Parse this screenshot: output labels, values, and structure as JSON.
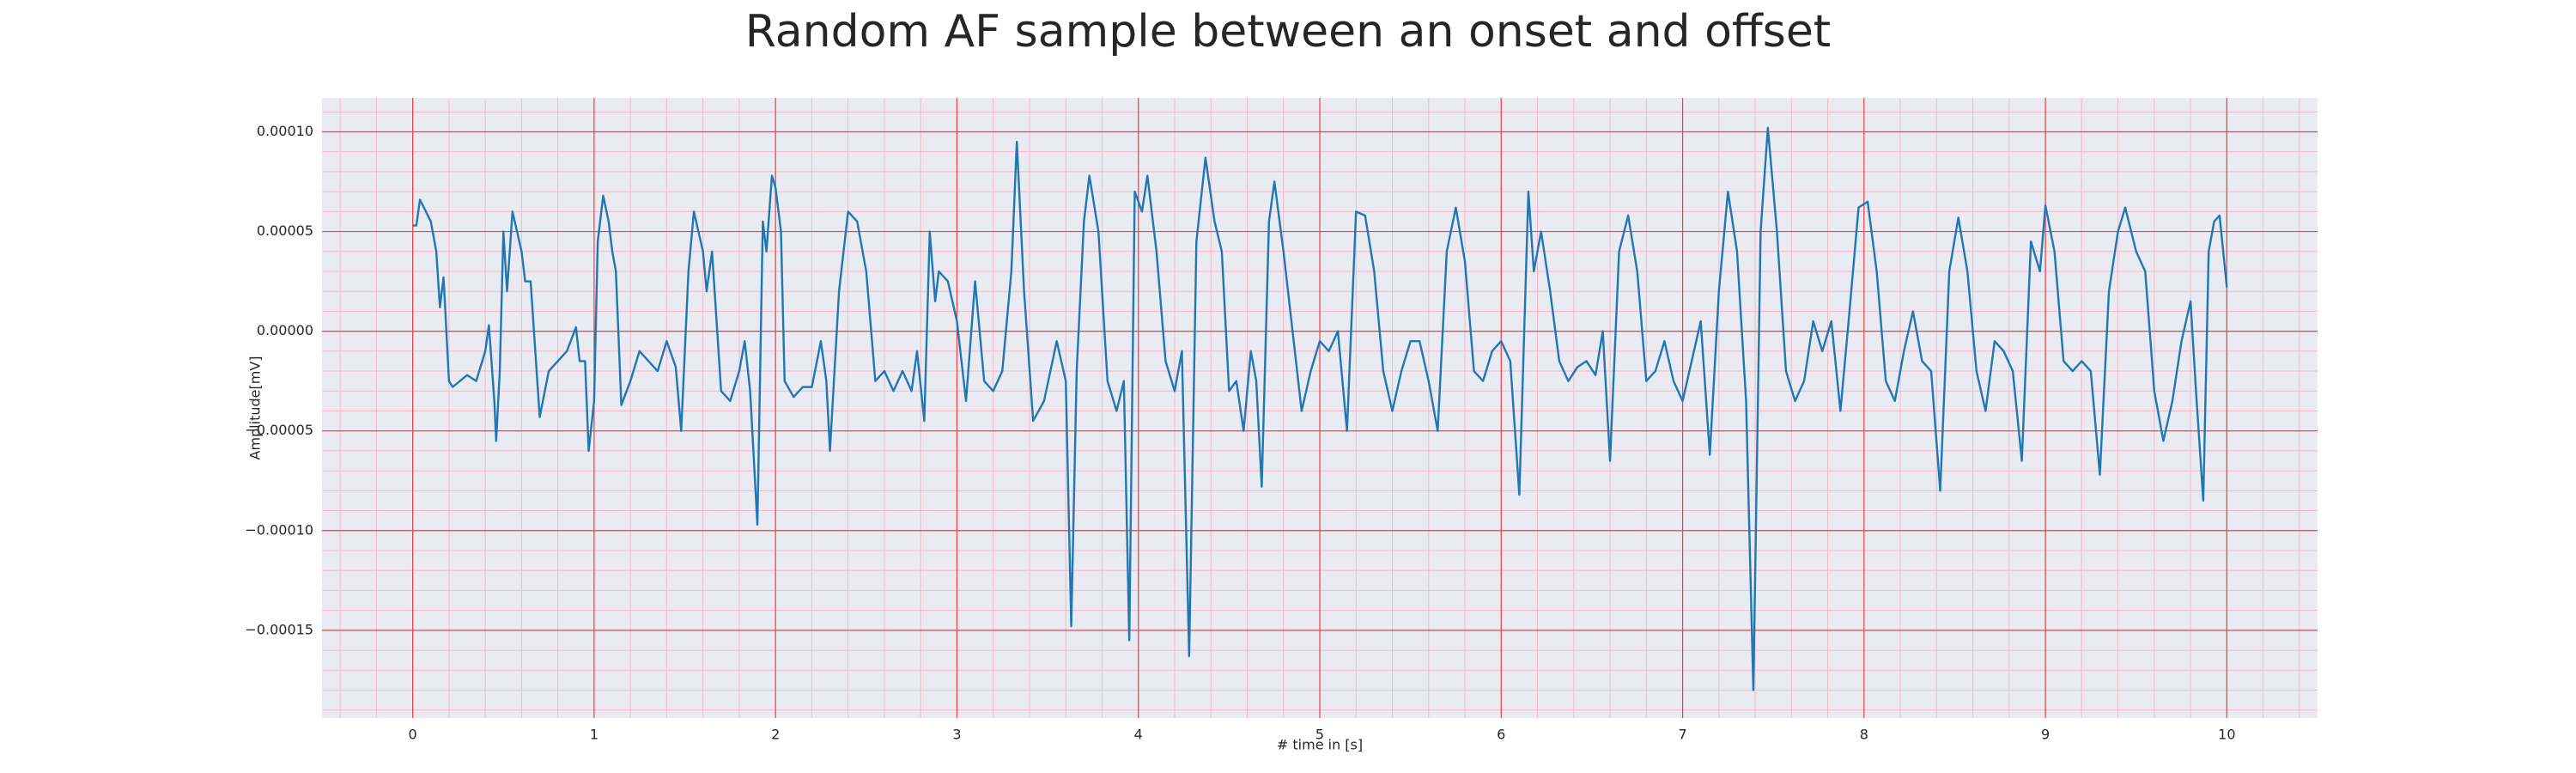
{
  "chart_data": {
    "type": "line",
    "title": "Random AF sample between an onset and offset",
    "xlabel": "# time in [s]",
    "ylabel": "Amplitude[mV]",
    "color": "#1f77b4",
    "grid": true,
    "minor_grid": true,
    "xlim": [
      -0.5,
      10.5
    ],
    "ylim": [
      -0.000194,
      0.000117
    ],
    "xticks": [
      0,
      1,
      2,
      3,
      4,
      5,
      6,
      7,
      8,
      9,
      10
    ],
    "yticks": [
      {
        "value": -0.00015,
        "label": "−0.00015"
      },
      {
        "value": -0.0001,
        "label": "−0.00010"
      },
      {
        "value": -5e-05,
        "label": "−0.00005"
      },
      {
        "value": 0,
        "label": "0.00000"
      },
      {
        "value": 5e-05,
        "label": "0.00005"
      },
      {
        "value": 0.0001,
        "label": "0.00010"
      }
    ],
    "x": [
      0,
      0.02,
      0.04,
      0.1,
      0.13,
      0.15,
      0.17,
      0.2,
      0.22,
      0.3,
      0.35,
      0.4,
      0.42,
      0.45,
      0.46,
      0.48,
      0.5,
      0.52,
      0.55,
      0.6,
      0.62,
      0.65,
      0.7,
      0.75,
      0.8,
      0.85,
      0.9,
      0.92,
      0.95,
      0.97,
      1.0,
      1.02,
      1.05,
      1.08,
      1.1,
      1.12,
      1.15,
      1.2,
      1.25,
      1.3,
      1.35,
      1.4,
      1.45,
      1.48,
      1.52,
      1.55,
      1.6,
      1.62,
      1.65,
      1.7,
      1.75,
      1.8,
      1.83,
      1.86,
      1.9,
      1.93,
      1.95,
      1.98,
      2.0,
      2.03,
      2.05,
      2.1,
      2.15,
      2.2,
      2.25,
      2.28,
      2.3,
      2.35,
      2.4,
      2.45,
      2.5,
      2.55,
      2.6,
      2.65,
      2.7,
      2.75,
      2.78,
      2.82,
      2.85,
      2.88,
      2.9,
      2.95,
      3.0,
      3.05,
      3.1,
      3.15,
      3.2,
      3.25,
      3.3,
      3.33,
      3.37,
      3.42,
      3.48,
      3.55,
      3.6,
      3.63,
      3.66,
      3.7,
      3.73,
      3.78,
      3.83,
      3.88,
      3.92,
      3.95,
      3.98,
      4.02,
      4.05,
      4.1,
      4.15,
      4.2,
      4.24,
      4.28,
      4.32,
      4.37,
      4.42,
      4.46,
      4.5,
      4.54,
      4.58,
      4.62,
      4.65,
      4.68,
      4.72,
      4.75,
      4.8,
      4.85,
      4.9,
      4.95,
      5.0,
      5.05,
      5.1,
      5.15,
      5.2,
      5.25,
      5.3,
      5.35,
      5.4,
      5.45,
      5.5,
      5.55,
      5.6,
      5.65,
      5.7,
      5.75,
      5.8,
      5.85,
      5.9,
      5.95,
      6.0,
      6.05,
      6.1,
      6.15,
      6.18,
      6.22,
      6.27,
      6.32,
      6.37,
      6.42,
      6.47,
      6.52,
      6.56,
      6.6,
      6.65,
      6.7,
      6.75,
      6.8,
      6.85,
      6.9,
      6.95,
      7.0,
      7.05,
      7.1,
      7.15,
      7.2,
      7.25,
      7.3,
      7.35,
      7.39,
      7.43,
      7.47,
      7.52,
      7.57,
      7.62,
      7.67,
      7.72,
      7.77,
      7.82,
      7.87,
      7.92,
      7.97,
      8.02,
      8.07,
      8.12,
      8.17,
      8.22,
      8.27,
      8.32,
      8.37,
      8.42,
      8.47,
      8.52,
      8.57,
      8.62,
      8.67,
      8.72,
      8.77,
      8.82,
      8.87,
      8.92,
      8.97,
      9.0,
      9.05,
      9.1,
      9.15,
      9.2,
      9.25,
      9.3,
      9.35,
      9.4,
      9.44,
      9.5,
      9.55,
      9.6,
      9.65,
      9.7,
      9.75,
      9.8,
      9.83,
      9.87,
      9.9,
      9.93,
      9.96,
      10.0
    ],
    "values": [
      5.3e-05,
      5.3e-05,
      6.6e-05,
      5.5e-05,
      4e-05,
      1.2e-05,
      2.7e-05,
      -2.5e-05,
      -2.8e-05,
      -2.2e-05,
      -2.5e-05,
      -1e-05,
      3e-06,
      -3.5e-05,
      -5.5e-05,
      -2e-05,
      5e-05,
      2e-05,
      6e-05,
      4e-05,
      2.5e-05,
      2.5e-05,
      -4.3e-05,
      -2e-05,
      -1.5e-05,
      -1e-05,
      2e-06,
      -1.5e-05,
      -1.5e-05,
      -6e-05,
      -3.5e-05,
      4.5e-05,
      6.8e-05,
      5.5e-05,
      4e-05,
      3e-05,
      -3.7e-05,
      -2.5e-05,
      -1e-05,
      -1.5e-05,
      -2e-05,
      -5e-06,
      -1.8e-05,
      -5e-05,
      3e-05,
      6e-05,
      4e-05,
      2e-05,
      4e-05,
      -3e-05,
      -3.5e-05,
      -2e-05,
      -5e-06,
      -3e-05,
      -9.7e-05,
      5.5e-05,
      4e-05,
      7.8e-05,
      7.2e-05,
      5e-05,
      -2.5e-05,
      -3.3e-05,
      -2.8e-05,
      -2.8e-05,
      -5e-06,
      -2.5e-05,
      -6e-05,
      2e-05,
      6e-05,
      5.5e-05,
      3e-05,
      -2.5e-05,
      -2e-05,
      -3e-05,
      -2e-05,
      -3e-05,
      -1e-05,
      -4.5e-05,
      5e-05,
      1.5e-05,
      3e-05,
      2.5e-05,
      5e-06,
      -3.5e-05,
      2.5e-05,
      -2.5e-05,
      -3e-05,
      -2e-05,
      3e-05,
      9.5e-05,
      2e-05,
      -4.5e-05,
      -3.5e-05,
      -5e-06,
      -2.5e-05,
      -0.000148,
      -2e-05,
      5.5e-05,
      7.8e-05,
      5e-05,
      -2.5e-05,
      -4e-05,
      -2.5e-05,
      -0.000155,
      7e-05,
      6e-05,
      7.8e-05,
      4e-05,
      -1.5e-05,
      -3e-05,
      -1e-05,
      -0.000163,
      4.5e-05,
      8.7e-05,
      5.5e-05,
      4e-05,
      -3e-05,
      -2.5e-05,
      -5e-05,
      -1e-05,
      -2.5e-05,
      -7.8e-05,
      5.5e-05,
      7.5e-05,
      4e-05,
      0,
      -4e-05,
      -2e-05,
      -5e-06,
      -1e-05,
      0,
      -5e-05,
      6e-05,
      5.8e-05,
      3e-05,
      -2e-05,
      -4e-05,
      -2e-05,
      -5e-06,
      -5e-06,
      -2.5e-05,
      -5e-05,
      4e-05,
      6.2e-05,
      3.5e-05,
      -2e-05,
      -2.5e-05,
      -1e-05,
      -5e-06,
      -1.5e-05,
      -8.2e-05,
      7e-05,
      3e-05,
      5e-05,
      2e-05,
      -1.5e-05,
      -2.5e-05,
      -1.8e-05,
      -1.5e-05,
      -2.2e-05,
      0,
      -6.5e-05,
      4e-05,
      5.8e-05,
      3e-05,
      -2.5e-05,
      -2e-05,
      -5e-06,
      -2.5e-05,
      -3.5e-05,
      -1.5e-05,
      5e-06,
      -6.2e-05,
      2e-05,
      7e-05,
      4e-05,
      -3.5e-05,
      -0.00018,
      5e-05,
      0.000102,
      5e-05,
      -2e-05,
      -3.5e-05,
      -2.5e-05,
      5e-06,
      -1e-05,
      5e-06,
      -4e-05,
      1e-05,
      6.2e-05,
      6.5e-05,
      3e-05,
      -2.5e-05,
      -3.5e-05,
      -1e-05,
      1e-05,
      -1.5e-05,
      -2e-05,
      -8e-05,
      3e-05,
      5.7e-05,
      3e-05,
      -2e-05,
      -4e-05,
      -5e-06,
      -1e-05,
      -2e-05,
      -6.5e-05,
      4.5e-05,
      3e-05,
      6.3e-05,
      4e-05,
      -1.5e-05,
      -2e-05,
      -1.5e-05,
      -2e-05,
      -7.2e-05,
      2e-05,
      5e-05,
      6.2e-05,
      4e-05,
      3e-05,
      -3e-05,
      -5.5e-05,
      -3.5e-05,
      -5e-06,
      1.5e-05,
      -3e-05,
      -8.5e-05,
      4e-05,
      5.5e-05,
      5.8e-05,
      2.2e-05
    ]
  }
}
